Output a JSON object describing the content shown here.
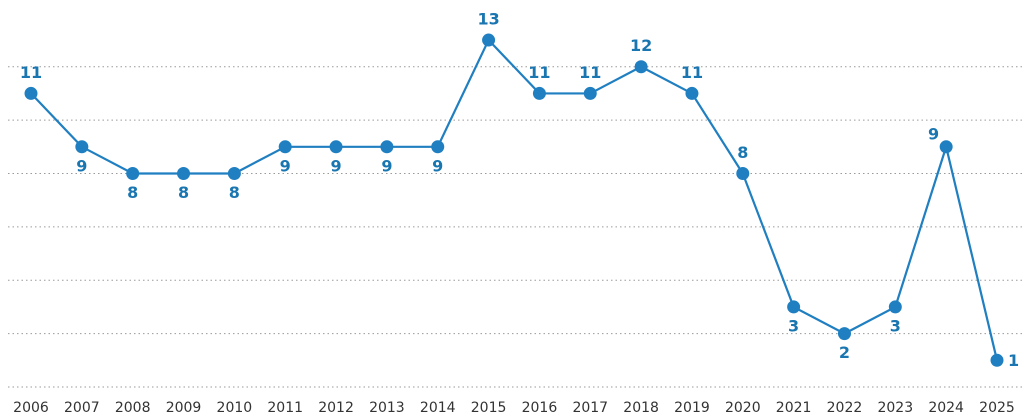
{
  "chart_data": {
    "type": "line",
    "categories": [
      "2006",
      "2007",
      "2008",
      "2009",
      "2010",
      "2011",
      "2012",
      "2013",
      "2014",
      "2015",
      "2016",
      "2017",
      "2018",
      "2019",
      "2020",
      "2021",
      "2022",
      "2023",
      "2024",
      "2025"
    ],
    "values": [
      11,
      9,
      8,
      8,
      8,
      9,
      9,
      9,
      9,
      13,
      11,
      11,
      12,
      11,
      8,
      3,
      2,
      3,
      9,
      1
    ],
    "color": "#1f7fc1",
    "ylim": [
      0,
      14.5
    ],
    "yticks": [
      0,
      2,
      4,
      6,
      8,
      10,
      12
    ],
    "grid": true
  }
}
